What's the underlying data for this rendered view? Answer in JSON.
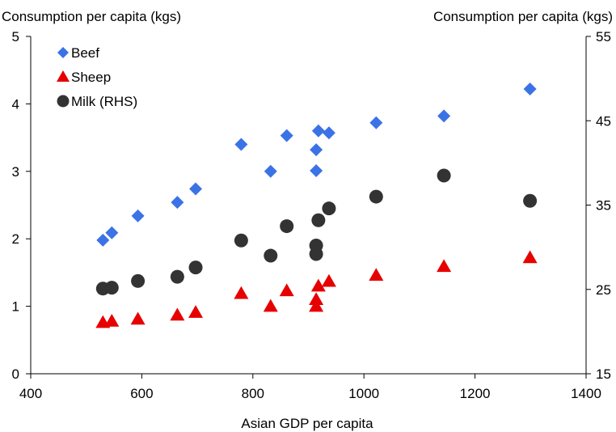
{
  "chart_data": {
    "type": "scatter",
    "title": "",
    "xlabel": "Asian GDP per capita",
    "ylabel_left": "Consumption per capita (kgs)",
    "ylabel_right": "Consumption per capita (kgs)",
    "xlim": [
      400,
      1400
    ],
    "ylim_left": [
      0,
      5
    ],
    "ylim_right": [
      15,
      55
    ],
    "x_ticks": [
      400,
      600,
      800,
      1000,
      1200,
      1400
    ],
    "y_ticks_left": [
      0,
      1,
      2,
      3,
      4,
      5
    ],
    "y_ticks_right": [
      15,
      25,
      35,
      45,
      55
    ],
    "grid": false,
    "legend_position": "top-left",
    "series": [
      {
        "name": "Beef",
        "axis": "left",
        "marker": "diamond",
        "color": "#3B73E6",
        "points": [
          [
            530,
            1.98
          ],
          [
            546,
            2.09
          ],
          [
            593,
            2.34
          ],
          [
            664,
            2.54
          ],
          [
            697,
            2.74
          ],
          [
            779,
            3.4
          ],
          [
            832,
            3.0
          ],
          [
            861,
            3.53
          ],
          [
            914,
            3.01
          ],
          [
            914,
            3.32
          ],
          [
            918,
            3.6
          ],
          [
            937,
            3.57
          ],
          [
            1022,
            3.72
          ],
          [
            1144,
            3.82
          ],
          [
            1299,
            4.22
          ]
        ]
      },
      {
        "name": "Sheep",
        "axis": "left",
        "marker": "triangle",
        "color": "#E60000",
        "points": [
          [
            530,
            0.76
          ],
          [
            546,
            0.78
          ],
          [
            593,
            0.81
          ],
          [
            664,
            0.87
          ],
          [
            697,
            0.91
          ],
          [
            779,
            1.19
          ],
          [
            832,
            1.0
          ],
          [
            861,
            1.23
          ],
          [
            914,
            1.0
          ],
          [
            914,
            1.1
          ],
          [
            918,
            1.3
          ],
          [
            937,
            1.37
          ],
          [
            1022,
            1.46
          ],
          [
            1144,
            1.59
          ],
          [
            1299,
            1.72
          ]
        ]
      },
      {
        "name": "Milk (RHS)",
        "axis": "right",
        "marker": "circle",
        "color": "#333333",
        "points": [
          [
            530,
            25.1
          ],
          [
            546,
            25.2
          ],
          [
            593,
            26.0
          ],
          [
            664,
            26.5
          ],
          [
            697,
            27.6
          ],
          [
            779,
            30.8
          ],
          [
            832,
            29.0
          ],
          [
            861,
            32.5
          ],
          [
            914,
            29.2
          ],
          [
            914,
            30.2
          ],
          [
            918,
            33.2
          ],
          [
            937,
            34.6
          ],
          [
            1022,
            36.0
          ],
          [
            1144,
            38.5
          ],
          [
            1299,
            35.5
          ]
        ]
      }
    ]
  }
}
